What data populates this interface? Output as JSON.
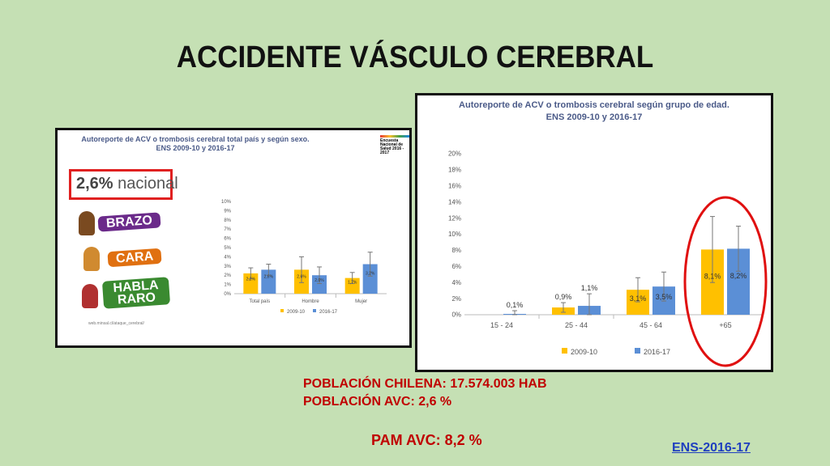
{
  "page": {
    "title": "ACCIDENTE VÁSCULO CEREBRAL",
    "poblacion_chilena": "POBLACIÓN CHILENA: 17.574.003 HAB",
    "poblacion_avc": "POBLACIÓN AVC: 2,6 %",
    "pam_avc": "PAM AVC: 8,2 %",
    "source_link": "ENS-2016-17"
  },
  "left_panel": {
    "national_value": "2,6%",
    "national_label": "nacional",
    "badges": [
      "BRAZO",
      "CARA",
      "HABLA RARO"
    ],
    "logo_text": "Encuesta Nacional de Salud 2016 - 2017",
    "web_ref": "web.minsal.cl/ataque_cerebral/"
  },
  "chart_data": [
    {
      "type": "bar",
      "title": "Autoreporte de ACV o trombosis cerebral total país y según sexo. ENS 2009-10 y 2016-17",
      "title_lines": [
        "Autoreporte de ACV o trombosis cerebral total país y según sexo.",
        "ENS 2009-10 y 2016-17"
      ],
      "categories": [
        "Total país",
        "Hombre",
        "Mujer"
      ],
      "series": [
        {
          "name": "2009-10",
          "values": [
            2.2,
            2.6,
            1.7
          ],
          "labels": [
            "2,2%",
            "2,6%",
            "1,7%"
          ],
          "err": [
            0.6,
            1.4,
            0.6
          ],
          "color": "#ffc000"
        },
        {
          "name": "2016-17",
          "values": [
            2.6,
            2.0,
            3.2
          ],
          "labels": [
            "2,6%",
            "2,0%",
            "3,2%"
          ],
          "err": [
            0.6,
            0.9,
            1.3
          ],
          "color": "#5b8fd6"
        }
      ],
      "yticks": [
        "0%",
        "1%",
        "2%",
        "3%",
        "4%",
        "5%",
        "6%",
        "7%",
        "8%",
        "9%",
        "10%"
      ],
      "ylim": [
        0,
        10
      ],
      "legend": "bottom"
    },
    {
      "type": "bar",
      "title": "Autoreporte de ACV o trombosis cerebral según grupo de edad. ENS 2009-10 y 2016-17",
      "title_lines": [
        "Autoreporte de ACV o trombosis cerebral según grupo de edad.",
        "ENS 2009-10 y 2016-17"
      ],
      "categories": [
        "15 - 24",
        "25 - 44",
        "45 - 64",
        "+65"
      ],
      "series": [
        {
          "name": "2009-10",
          "values": [
            0,
            0.9,
            3.1,
            8.1
          ],
          "labels": [
            "",
            "0,9%",
            "3,1%",
            "8,1%"
          ],
          "err": [
            0,
            0.6,
            1.5,
            4.1
          ],
          "color": "#ffc000"
        },
        {
          "name": "2016-17",
          "values": [
            0.1,
            1.1,
            3.5,
            8.2
          ],
          "labels": [
            "0,1%",
            "1,1%",
            "3,5%",
            "8,2%"
          ],
          "err": [
            0.4,
            1.5,
            1.8,
            2.8
          ],
          "color": "#5b8fd6"
        }
      ],
      "yticks": [
        "0%",
        "2%",
        "4%",
        "6%",
        "8%",
        "10%",
        "12%",
        "14%",
        "16%",
        "18%",
        "20%"
      ],
      "ylim": [
        0,
        20
      ],
      "legend": "bottom",
      "highlight": "+65"
    }
  ]
}
